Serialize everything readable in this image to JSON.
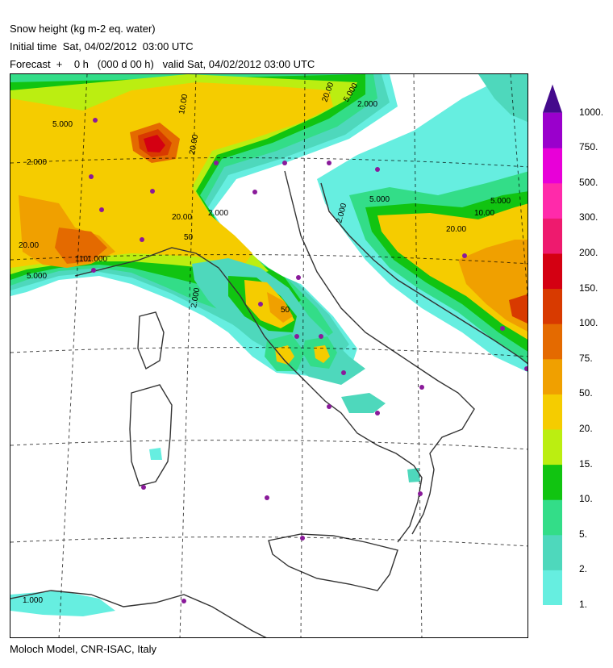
{
  "header": {
    "title": "Snow height (kg m-2 eq. water)",
    "initial_time": "Initial time  Sat, 04/02/2012  03:00 UTC",
    "forecast": "Forecast  +    0 h   (000 d 00 h)   valid Sat, 04/02/2012 03:00 UTC"
  },
  "footer": "Moloch Model, CNR-ISAC, Italy",
  "legend": {
    "levels": [
      {
        "label": "1.",
        "color": "#66eee0"
      },
      {
        "label": "2.",
        "color": "#4ed8bc"
      },
      {
        "label": "5.",
        "color": "#33dd88"
      },
      {
        "label": "10.",
        "color": "#11c411"
      },
      {
        "label": "15.",
        "color": "#bbee11"
      },
      {
        "label": "20.",
        "color": "#f5cc00"
      },
      {
        "label": "50.",
        "color": "#f0a000"
      },
      {
        "label": "75.",
        "color": "#e46a00"
      },
      {
        "label": "100.",
        "color": "#d83a00"
      },
      {
        "label": "150.",
        "color": "#d40012"
      },
      {
        "label": "200.",
        "color": "#ee1a6e"
      },
      {
        "label": "300.",
        "color": "#ff2aaa"
      },
      {
        "label": "500.",
        "color": "#e800d8"
      },
      {
        "label": "750.",
        "color": "#9a00cc"
      },
      {
        "label": "1000.",
        "color": "#440a8c"
      }
    ]
  },
  "contour_labels": [
    "20.00",
    "5.000",
    "2.000",
    "10.00",
    "20.00",
    "5.000",
    "2.000",
    "50",
    "110",
    "5.000",
    "20.00",
    "2.000",
    "1.000",
    "5.000",
    "2.000",
    "20.00",
    "10.00",
    "5.000",
    "2.000",
    "20.00",
    "50",
    "1.000"
  ]
}
